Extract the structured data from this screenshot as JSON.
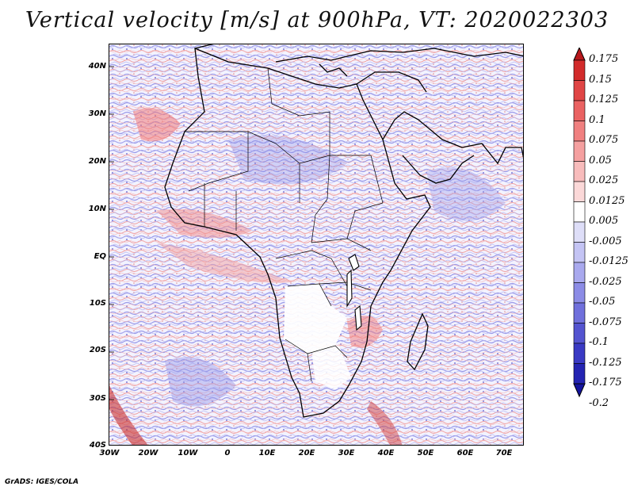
{
  "title": "Vertical velocity [m/s] at 900hPa, VT: 2020022303",
  "credit": "GrADS: IGES/COLA",
  "axes": {
    "y_ticks": [
      "40N",
      "30N",
      "20N",
      "10N",
      "EQ",
      "10S",
      "20S",
      "30S",
      "40S"
    ],
    "x_ticks": [
      "30W",
      "20W",
      "10W",
      "0",
      "10E",
      "20E",
      "30E",
      "40E",
      "50E",
      "60E",
      "70E"
    ]
  },
  "colorbar": {
    "labels": [
      "0.175",
      "0.15",
      "0.125",
      "0.1",
      "0.075",
      "0.05",
      "0.025",
      "0.0125",
      "0.005",
      "-0.005",
      "-0.0125",
      "-0.025",
      "-0.05",
      "-0.075",
      "-0.1",
      "-0.125",
      "-0.175",
      "-0.2"
    ],
    "colors": [
      "#b8181c",
      "#d22b2b",
      "#e04545",
      "#ea6262",
      "#f08080",
      "#f5a0a0",
      "#f8bcbc",
      "#fbd8d8",
      "#ffffff",
      "#dedef8",
      "#c4c4f4",
      "#a9a9ee",
      "#8c8ce6",
      "#7070dc",
      "#5454d0",
      "#3a3ac4",
      "#2424b2",
      "#14149e"
    ]
  },
  "map": {
    "region": "Africa",
    "lon_range": [
      -30,
      75
    ],
    "lat_range": [
      -40,
      45
    ]
  }
}
